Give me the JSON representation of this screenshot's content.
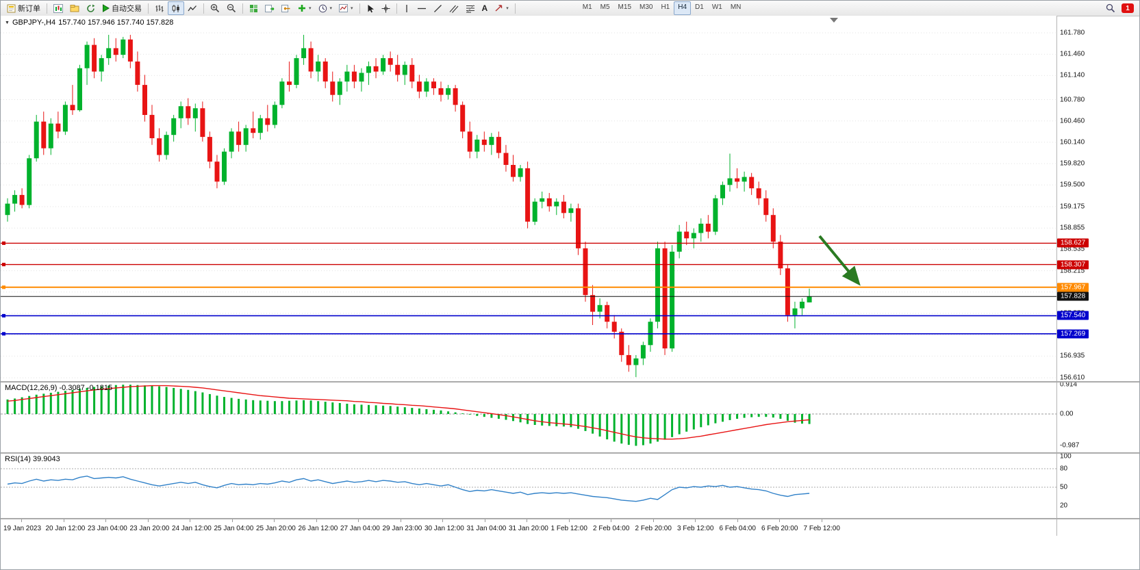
{
  "toolbar": {
    "new_order_label": "新订单",
    "auto_trading_label": "自动交易",
    "timeframes": [
      "M1",
      "M5",
      "M15",
      "M30",
      "H1",
      "H4",
      "D1",
      "W1",
      "MN"
    ],
    "active_timeframe": "H4",
    "notification_count": "1",
    "text_tool_label": "A"
  },
  "colors": {
    "up": "#00b22c",
    "down": "#e81414",
    "wick_up": "#00b22c",
    "wick_down": "#e81414",
    "grid": "#e2e2e2",
    "macd_hist": "#00b22c",
    "macd_signal": "#e81414",
    "rsi_line": "#2f80c8",
    "arrow_green": "#2a7a22"
  },
  "chart_data": {
    "type": "candlestick",
    "symbol_period": "GBPJPY-,H4",
    "ohlc_current": "157.740 157.946 157.740 157.828",
    "price_axis_labels": [
      "161.780",
      "161.460",
      "161.140",
      "160.780",
      "160.460",
      "160.140",
      "159.820",
      "159.500",
      "159.175",
      "158.855",
      "158.535",
      "158.215",
      "157.895",
      "157.575",
      "157.255",
      "156.935",
      "156.610"
    ],
    "hlines": [
      {
        "price": 158.627,
        "label": "158.627",
        "color": "#cc0000",
        "width": 1.4
      },
      {
        "price": 158.307,
        "label": "158.307",
        "color": "#cc0000",
        "width": 1.4
      },
      {
        "price": 157.967,
        "label": "157.967",
        "color": "#ff8a00",
        "width": 2
      },
      {
        "price": 157.828,
        "label": "157.828",
        "color": "#111111",
        "width": 1,
        "current": true
      },
      {
        "price": 157.54,
        "label": "157.540",
        "color": "#0000cc",
        "width": 1.6
      },
      {
        "price": 157.269,
        "label": "157.269",
        "color": "#0000cc",
        "width": 1.6
      }
    ],
    "candles": [
      [
        159.05,
        159.3,
        158.95,
        159.22
      ],
      [
        159.22,
        159.42,
        159.1,
        159.35
      ],
      [
        159.35,
        159.45,
        159.15,
        159.2
      ],
      [
        159.2,
        159.95,
        159.15,
        159.9
      ],
      [
        159.9,
        160.55,
        159.85,
        160.45
      ],
      [
        160.45,
        160.6,
        159.95,
        160.05
      ],
      [
        160.05,
        160.5,
        159.95,
        160.42
      ],
      [
        160.42,
        160.6,
        160.2,
        160.3
      ],
      [
        160.3,
        160.75,
        160.25,
        160.7
      ],
      [
        160.7,
        161.0,
        160.55,
        160.62
      ],
      [
        160.62,
        161.3,
        160.6,
        161.25
      ],
      [
        161.25,
        161.65,
        161.0,
        161.6
      ],
      [
        161.6,
        161.7,
        161.1,
        161.2
      ],
      [
        161.2,
        161.45,
        161.05,
        161.4
      ],
      [
        161.4,
        161.75,
        161.3,
        161.55
      ],
      [
        161.55,
        161.7,
        161.35,
        161.45
      ],
      [
        161.45,
        161.72,
        161.4,
        161.68
      ],
      [
        161.68,
        161.75,
        161.25,
        161.35
      ],
      [
        161.35,
        161.5,
        160.9,
        161.0
      ],
      [
        161.0,
        161.15,
        160.45,
        160.55
      ],
      [
        160.55,
        160.7,
        160.1,
        160.2
      ],
      [
        160.2,
        160.35,
        159.85,
        159.95
      ],
      [
        159.95,
        160.3,
        159.88,
        160.25
      ],
      [
        160.25,
        160.55,
        160.15,
        160.5
      ],
      [
        160.5,
        160.75,
        160.35,
        160.68
      ],
      [
        160.68,
        160.8,
        160.4,
        160.5
      ],
      [
        160.5,
        160.72,
        160.3,
        160.65
      ],
      [
        160.65,
        160.75,
        160.15,
        160.22
      ],
      [
        160.22,
        160.3,
        159.75,
        159.85
      ],
      [
        159.85,
        159.95,
        159.45,
        159.55
      ],
      [
        159.55,
        160.05,
        159.5,
        160.0
      ],
      [
        160.0,
        160.35,
        159.9,
        160.3
      ],
      [
        160.3,
        160.45,
        160.0,
        160.1
      ],
      [
        160.1,
        160.4,
        160.0,
        160.35
      ],
      [
        160.35,
        160.6,
        160.2,
        160.28
      ],
      [
        160.28,
        160.55,
        160.18,
        160.5
      ],
      [
        160.5,
        160.7,
        160.3,
        160.4
      ],
      [
        160.4,
        160.75,
        160.35,
        160.7
      ],
      [
        160.7,
        161.1,
        160.65,
        161.05
      ],
      [
        161.05,
        161.35,
        160.9,
        161.0
      ],
      [
        161.0,
        161.45,
        160.95,
        161.4
      ],
      [
        161.4,
        161.75,
        161.3,
        161.55
      ],
      [
        161.55,
        161.65,
        161.1,
        161.2
      ],
      [
        161.2,
        161.45,
        161.05,
        161.35
      ],
      [
        161.35,
        161.4,
        160.95,
        161.05
      ],
      [
        161.05,
        161.2,
        160.75,
        160.85
      ],
      [
        160.85,
        161.1,
        160.7,
        161.05
      ],
      [
        161.05,
        161.3,
        160.9,
        161.2
      ],
      [
        161.2,
        161.3,
        160.95,
        161.05
      ],
      [
        161.05,
        161.25,
        160.9,
        161.18
      ],
      [
        161.18,
        161.35,
        161.0,
        161.28
      ],
      [
        161.28,
        161.4,
        161.1,
        161.2
      ],
      [
        161.2,
        161.45,
        161.15,
        161.4
      ],
      [
        161.4,
        161.5,
        161.2,
        161.3
      ],
      [
        161.3,
        161.45,
        161.05,
        161.15
      ],
      [
        161.15,
        161.35,
        161.0,
        161.3
      ],
      [
        161.3,
        161.4,
        160.95,
        161.05
      ],
      [
        161.05,
        161.15,
        160.8,
        160.9
      ],
      [
        160.9,
        161.1,
        160.82,
        161.05
      ],
      [
        161.05,
        161.1,
        160.85,
        160.95
      ],
      [
        160.95,
        161.05,
        160.75,
        160.85
      ],
      [
        160.85,
        161.0,
        160.78,
        160.95
      ],
      [
        160.95,
        161.0,
        160.6,
        160.7
      ],
      [
        160.7,
        160.75,
        160.2,
        160.3
      ],
      [
        160.3,
        160.45,
        159.9,
        160.0
      ],
      [
        160.0,
        160.25,
        159.9,
        160.18
      ],
      [
        160.18,
        160.3,
        160.0,
        160.1
      ],
      [
        160.1,
        160.28,
        159.95,
        160.22
      ],
      [
        160.22,
        160.3,
        159.9,
        159.98
      ],
      [
        159.98,
        160.1,
        159.7,
        159.8
      ],
      [
        159.8,
        159.95,
        159.55,
        159.62
      ],
      [
        159.62,
        159.8,
        159.55,
        159.75
      ],
      [
        159.75,
        159.85,
        158.85,
        158.95
      ],
      [
        158.95,
        159.3,
        158.9,
        159.25
      ],
      [
        159.25,
        159.4,
        159.15,
        159.3
      ],
      [
        159.3,
        159.38,
        159.1,
        159.18
      ],
      [
        159.18,
        159.3,
        159.05,
        159.25
      ],
      [
        159.25,
        159.35,
        159.0,
        159.08
      ],
      [
        159.08,
        159.22,
        158.95,
        159.15
      ],
      [
        159.15,
        159.22,
        158.45,
        158.55
      ],
      [
        158.55,
        158.65,
        157.75,
        157.85
      ],
      [
        157.85,
        158.0,
        157.4,
        157.6
      ],
      [
        157.6,
        157.8,
        157.5,
        157.7
      ],
      [
        157.7,
        157.75,
        157.35,
        157.45
      ],
      [
        157.45,
        157.55,
        157.2,
        157.3
      ],
      [
        157.3,
        157.35,
        156.85,
        156.95
      ],
      [
        156.95,
        157.1,
        156.7,
        156.8
      ],
      [
        156.8,
        156.95,
        156.62,
        156.9
      ],
      [
        156.9,
        157.15,
        156.8,
        157.1
      ],
      [
        157.1,
        157.5,
        157.0,
        157.45
      ],
      [
        157.45,
        158.65,
        157.35,
        158.55
      ],
      [
        158.55,
        158.65,
        156.95,
        157.05
      ],
      [
        157.05,
        158.6,
        157.0,
        158.5
      ],
      [
        158.5,
        158.9,
        158.4,
        158.8
      ],
      [
        158.8,
        158.95,
        158.6,
        158.7
      ],
      [
        158.7,
        158.85,
        158.55,
        158.78
      ],
      [
        158.78,
        159.0,
        158.65,
        158.92
      ],
      [
        158.92,
        159.05,
        158.7,
        158.8
      ],
      [
        158.8,
        159.35,
        158.75,
        159.3
      ],
      [
        159.3,
        159.55,
        159.2,
        159.5
      ],
      [
        159.5,
        159.97,
        159.4,
        159.6
      ],
      [
        159.6,
        159.75,
        159.45,
        159.55
      ],
      [
        159.55,
        159.7,
        159.4,
        159.62
      ],
      [
        159.62,
        159.68,
        159.35,
        159.45
      ],
      [
        159.45,
        159.55,
        159.2,
        159.3
      ],
      [
        159.3,
        159.42,
        158.95,
        159.05
      ],
      [
        159.05,
        159.15,
        158.55,
        158.65
      ],
      [
        158.65,
        158.75,
        158.15,
        158.25
      ],
      [
        158.25,
        158.3,
        157.45,
        157.55
      ],
      [
        157.55,
        157.75,
        157.35,
        157.65
      ],
      [
        157.65,
        157.8,
        157.55,
        157.75
      ],
      [
        157.74,
        157.946,
        157.74,
        157.828
      ]
    ],
    "macd": {
      "name": "MACD(12,26,9)",
      "values": "-0.3087 -0.1815",
      "axis": [
        "0.914",
        "0.00",
        "-0.987"
      ],
      "hist": [
        0.45,
        0.48,
        0.52,
        0.56,
        0.6,
        0.63,
        0.66,
        0.69,
        0.72,
        0.75,
        0.78,
        0.81,
        0.84,
        0.86,
        0.88,
        0.9,
        0.91,
        0.91,
        0.9,
        0.89,
        0.88,
        0.86,
        0.84,
        0.81,
        0.78,
        0.75,
        0.71,
        0.67,
        0.62,
        0.57,
        0.53,
        0.5,
        0.47,
        0.45,
        0.43,
        0.42,
        0.41,
        0.4,
        0.4,
        0.41,
        0.42,
        0.43,
        0.42,
        0.4,
        0.38,
        0.36,
        0.34,
        0.32,
        0.3,
        0.29,
        0.28,
        0.27,
        0.26,
        0.25,
        0.23,
        0.21,
        0.19,
        0.17,
        0.15,
        0.13,
        0.11,
        0.08,
        0.05,
        0.02,
        -0.02,
        -0.06,
        -0.09,
        -0.12,
        -0.15,
        -0.18,
        -0.22,
        -0.26,
        -0.31,
        -0.34,
        -0.36,
        -0.37,
        -0.38,
        -0.39,
        -0.41,
        -0.46,
        -0.53,
        -0.61,
        -0.7,
        -0.79,
        -0.86,
        -0.92,
        -0.96,
        -0.99,
        -0.97,
        -0.92,
        -0.86,
        -0.8,
        -0.72,
        -0.63,
        -0.55,
        -0.48,
        -0.41,
        -0.35,
        -0.29,
        -0.24,
        -0.19,
        -0.15,
        -0.12,
        -0.1,
        -0.09,
        -0.09,
        -0.11,
        -0.15,
        -0.21,
        -0.27,
        -0.3,
        -0.31
      ],
      "signal": [
        0.4,
        0.42,
        0.45,
        0.48,
        0.51,
        0.54,
        0.57,
        0.6,
        0.63,
        0.66,
        0.69,
        0.72,
        0.75,
        0.77,
        0.79,
        0.81,
        0.83,
        0.85,
        0.86,
        0.87,
        0.88,
        0.88,
        0.88,
        0.87,
        0.86,
        0.85,
        0.83,
        0.81,
        0.78,
        0.75,
        0.72,
        0.69,
        0.66,
        0.63,
        0.6,
        0.57,
        0.55,
        0.53,
        0.51,
        0.49,
        0.48,
        0.47,
        0.46,
        0.45,
        0.44,
        0.43,
        0.42,
        0.41,
        0.39,
        0.38,
        0.36,
        0.35,
        0.33,
        0.32,
        0.3,
        0.29,
        0.27,
        0.26,
        0.24,
        0.22,
        0.2,
        0.18,
        0.16,
        0.13,
        0.1,
        0.07,
        0.04,
        0.01,
        -0.02,
        -0.05,
        -0.09,
        -0.13,
        -0.17,
        -0.21,
        -0.24,
        -0.27,
        -0.29,
        -0.31,
        -0.33,
        -0.36,
        -0.39,
        -0.43,
        -0.47,
        -0.52,
        -0.57,
        -0.62,
        -0.67,
        -0.71,
        -0.74,
        -0.76,
        -0.77,
        -0.78,
        -0.78,
        -0.77,
        -0.75,
        -0.72,
        -0.69,
        -0.65,
        -0.61,
        -0.57,
        -0.53,
        -0.49,
        -0.45,
        -0.41,
        -0.37,
        -0.33,
        -0.3,
        -0.27,
        -0.24,
        -0.22,
        -0.2,
        -0.18
      ]
    },
    "rsi": {
      "name": "RSI(14)",
      "value": "39.9043",
      "axis": [
        "100",
        "80",
        "50",
        "20"
      ],
      "levels": [
        80,
        50
      ],
      "values": [
        55,
        57,
        56,
        60,
        63,
        60,
        62,
        61,
        63,
        62,
        66,
        68,
        64,
        65,
        66,
        65,
        67,
        63,
        60,
        57,
        54,
        52,
        54,
        56,
        58,
        56,
        58,
        54,
        51,
        49,
        53,
        56,
        54,
        55,
        54,
        56,
        55,
        57,
        60,
        58,
        62,
        64,
        60,
        62,
        59,
        56,
        58,
        60,
        58,
        59,
        61,
        59,
        61,
        60,
        58,
        59,
        56,
        54,
        56,
        54,
        52,
        54,
        50,
        46,
        43,
        45,
        44,
        46,
        44,
        42,
        40,
        42,
        38,
        40,
        41,
        40,
        41,
        40,
        41,
        39,
        37,
        35,
        34,
        33,
        31,
        29,
        28,
        27,
        29,
        32,
        30,
        38,
        46,
        50,
        49,
        51,
        50,
        52,
        51,
        53,
        50,
        51,
        49,
        47,
        46,
        44,
        40,
        37,
        35,
        38,
        39,
        40
      ]
    },
    "time_labels": [
      "19 Jan 2023",
      "20 Jan 12:00",
      "23 Jan 04:00",
      "23 Jan 20:00",
      "24 Jan 12:00",
      "25 Jan 04:00",
      "25 Jan 20:00",
      "26 Jan 12:00",
      "27 Jan 04:00",
      "29 Jan 23:00",
      "30 Jan 12:00",
      "31 Jan 04:00",
      "31 Jan 20:00",
      "1 Feb 12:00",
      "2 Feb 04:00",
      "2 Feb 20:00",
      "3 Feb 12:00",
      "6 Feb 04:00",
      "6 Feb 20:00",
      "7 Feb 12:00"
    ]
  }
}
